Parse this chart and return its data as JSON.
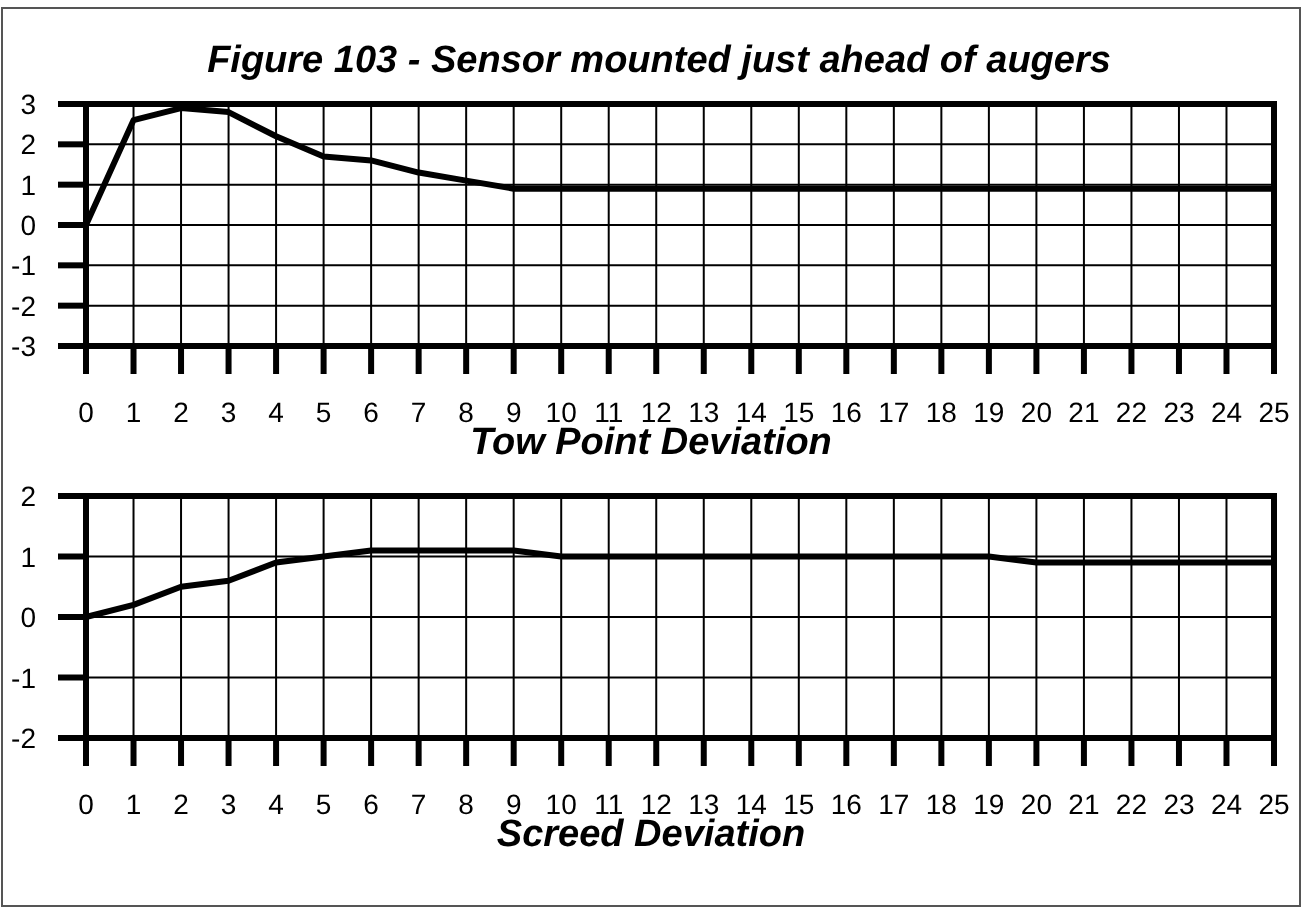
{
  "chart_data": [
    {
      "type": "line",
      "title": "Figure 103 - Sensor mounted just ahead of augers",
      "xlabel": "Tow Point Deviation",
      "x": [
        0,
        1,
        2,
        3,
        4,
        5,
        6,
        7,
        8,
        9,
        10,
        11,
        12,
        13,
        14,
        15,
        16,
        17,
        18,
        19,
        20,
        21,
        22,
        23,
        24,
        25
      ],
      "series": [
        {
          "color": "#000000",
          "values": [
            0,
            2.6,
            2.9,
            2.8,
            2.2,
            1.7,
            1.6,
            1.3,
            1.1,
            0.9,
            0.9,
            0.9,
            0.9,
            0.9,
            0.9,
            0.9,
            0.9,
            0.9,
            0.9,
            0.9,
            0.9,
            0.9,
            0.9,
            0.9,
            0.9,
            0.9
          ]
        }
      ],
      "xlim": [
        0,
        25
      ],
      "xticks": [
        0,
        1,
        2,
        3,
        4,
        5,
        6,
        7,
        8,
        9,
        10,
        11,
        12,
        13,
        14,
        15,
        16,
        17,
        18,
        19,
        20,
        21,
        22,
        23,
        24,
        25
      ],
      "ylim": [
        -3,
        3
      ],
      "yticks": [
        -3,
        -2,
        -1,
        0,
        1,
        2,
        3
      ],
      "grid": true
    },
    {
      "type": "line",
      "xlabel": "Screed Deviation",
      "x": [
        0,
        1,
        2,
        3,
        4,
        5,
        6,
        7,
        8,
        9,
        10,
        11,
        12,
        13,
        14,
        15,
        16,
        17,
        18,
        19,
        20,
        21,
        22,
        23,
        24,
        25
      ],
      "series": [
        {
          "color": "#000000",
          "values": [
            0,
            0.2,
            0.5,
            0.6,
            0.9,
            1.0,
            1.1,
            1.1,
            1.1,
            1.1,
            1.0,
            1.0,
            1.0,
            1.0,
            1.0,
            1.0,
            1.0,
            1.0,
            1.0,
            1.0,
            0.9,
            0.9,
            0.9,
            0.9,
            0.9,
            0.9
          ]
        }
      ],
      "xlim": [
        0,
        25
      ],
      "xticks": [
        0,
        1,
        2,
        3,
        4,
        5,
        6,
        7,
        8,
        9,
        10,
        11,
        12,
        13,
        14,
        15,
        16,
        17,
        18,
        19,
        20,
        21,
        22,
        23,
        24,
        25
      ],
      "ylim": [
        -2,
        2
      ],
      "yticks": [
        -2,
        -1,
        0,
        1,
        2
      ],
      "grid": true
    }
  ]
}
